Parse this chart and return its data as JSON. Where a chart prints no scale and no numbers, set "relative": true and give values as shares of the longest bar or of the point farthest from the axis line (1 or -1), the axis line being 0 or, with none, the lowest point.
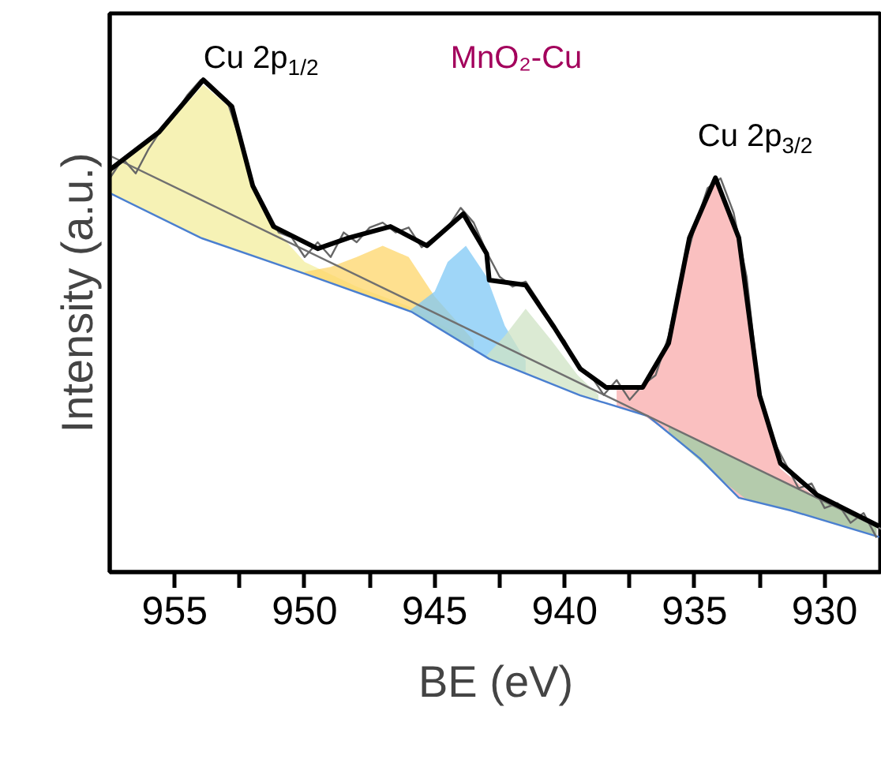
{
  "chart_data": {
    "type": "line",
    "title": "MnO₂-Cu",
    "xlabel": "BE (eV)",
    "ylabel": "Intensity (a.u.)",
    "relative": true,
    "tick_labels": "x",
    "grid": false,
    "xlim": [
      957.5,
      927.8
    ],
    "xticks": [
      955,
      {
        "value": 952.5,
        "label": null
      },
      950,
      {
        "value": 947.5,
        "label": null
      },
      945,
      {
        "value": 942.5,
        "label": null
      },
      940,
      {
        "value": 937.5,
        "label": null
      },
      935,
      {
        "value": 932.5,
        "label": null
      },
      930
    ],
    "annotations": [
      "Cu 2p$_{1/2}$",
      "Cu 2p$_{3/2}$"
    ],
    "series": [
      {
        "type": "area",
        "color": "#f3ee9c",
        "x": [
          957.5,
          955.6,
          953.9,
          952.8,
          952,
          951.2,
          950,
          948,
          946,
          944
        ],
        "values": [
          0.81,
          0.89,
          0.99,
          0.94,
          0.78,
          0.7,
          0.63,
          0.58,
          0.54,
          0.48
        ]
      },
      {
        "type": "area",
        "color": "#fdd56a",
        "x": [
          950,
          949,
          948,
          947,
          946,
          945,
          944,
          943.5
        ],
        "values": [
          0.61,
          0.62,
          0.64,
          0.663,
          0.64,
          0.56,
          0.5,
          0.47
        ]
      },
      {
        "type": "area",
        "color": "#7fc8f5",
        "x": [
          946,
          945,
          944.5,
          943.8,
          943,
          942.3,
          941.5
        ],
        "values": [
          0.53,
          0.57,
          0.63,
          0.663,
          0.6,
          0.5,
          0.43
        ]
      },
      {
        "type": "area",
        "color": "#cfe3c4",
        "x": [
          943,
          942.3,
          941.5,
          940.5,
          939.5,
          938.7
        ],
        "values": [
          0.44,
          0.48,
          0.535,
          0.47,
          0.4,
          0.36
        ]
      },
      {
        "type": "area",
        "color": "#f8abab",
        "x": [
          938,
          937,
          936,
          935.2,
          934.2,
          933.3,
          932.5,
          931.7,
          930.3,
          929,
          928
        ],
        "values": [
          0.37,
          0.37,
          0.46,
          0.67,
          0.8,
          0.67,
          0.35,
          0.21,
          0.15,
          0.12,
          0.1
        ]
      },
      {
        "type": "area",
        "color": "#9ccfa6",
        "x": [
          936,
          934,
          933,
          932,
          930,
          928
        ],
        "values": [
          0.296,
          0.245,
          0.22,
          0.194,
          0.143,
          0.092
        ]
      },
      {
        "color": "#4a7fd0",
        "x": [
          957.5,
          954,
          950,
          945.9,
          942.9,
          939.4,
          936.8,
          934.8,
          933.3,
          931.3,
          927.9
        ],
        "values": [
          0.77,
          0.679,
          0.606,
          0.529,
          0.433,
          0.359,
          0.317,
          0.231,
          0.151,
          0.125,
          0.071
        ]
      },
      {
        "color": "#707070",
        "x": [
          957.5,
          927.8
        ],
        "values": [
          0.846,
          0.087
        ]
      },
      {
        "color": "#666666",
        "x": [
          957.5,
          957,
          956.5,
          956,
          955.5,
          955,
          954.5,
          954,
          953.5,
          953,
          952.5,
          952,
          951.5,
          951,
          950.5,
          950,
          949.5,
          949,
          948.5,
          948,
          947.5,
          947,
          946.5,
          946,
          945.5,
          945,
          944.5,
          944,
          943.5,
          943,
          942.5,
          942,
          941.5,
          941,
          940.5,
          940,
          939.5,
          939,
          938.5,
          938,
          937.5,
          937,
          936.5,
          936,
          935.5,
          935,
          934.5,
          934,
          933.5,
          933,
          932.5,
          932,
          931.5,
          931,
          930.5,
          930,
          929.5,
          929,
          928.5,
          928
        ],
        "values": [
          0.8,
          0.84,
          0.81,
          0.86,
          0.9,
          0.93,
          0.97,
          1.0,
          0.98,
          0.96,
          0.88,
          0.79,
          0.74,
          0.69,
          0.68,
          0.64,
          0.67,
          0.64,
          0.69,
          0.67,
          0.7,
          0.71,
          0.69,
          0.7,
          0.66,
          0.68,
          0.7,
          0.74,
          0.71,
          0.65,
          0.6,
          0.58,
          0.59,
          0.55,
          0.5,
          0.47,
          0.42,
          0.4,
          0.36,
          0.39,
          0.35,
          0.38,
          0.4,
          0.48,
          0.6,
          0.7,
          0.78,
          0.8,
          0.73,
          0.6,
          0.36,
          0.27,
          0.22,
          0.17,
          0.18,
          0.13,
          0.14,
          0.1,
          0.12,
          0.07
        ]
      },
      {
        "color": "#000000",
        "x": [
          957.5,
          955.6,
          953.9,
          952.8,
          952,
          951.2,
          949.5,
          948.3,
          946.7,
          945.3,
          943.9,
          943,
          942.9,
          941.5,
          940.4,
          939.4,
          938.4,
          937,
          936,
          935.2,
          934.2,
          933.3,
          932.5,
          931.7,
          930.3,
          927.9
        ],
        "values": [
          0.817,
          0.894,
          1.0,
          0.946,
          0.785,
          0.702,
          0.657,
          0.679,
          0.702,
          0.663,
          0.728,
          0.647,
          0.593,
          0.583,
          0.497,
          0.413,
          0.375,
          0.375,
          0.465,
          0.679,
          0.801,
          0.679,
          0.359,
          0.221,
          0.157,
          0.093
        ]
      }
    ]
  }
}
